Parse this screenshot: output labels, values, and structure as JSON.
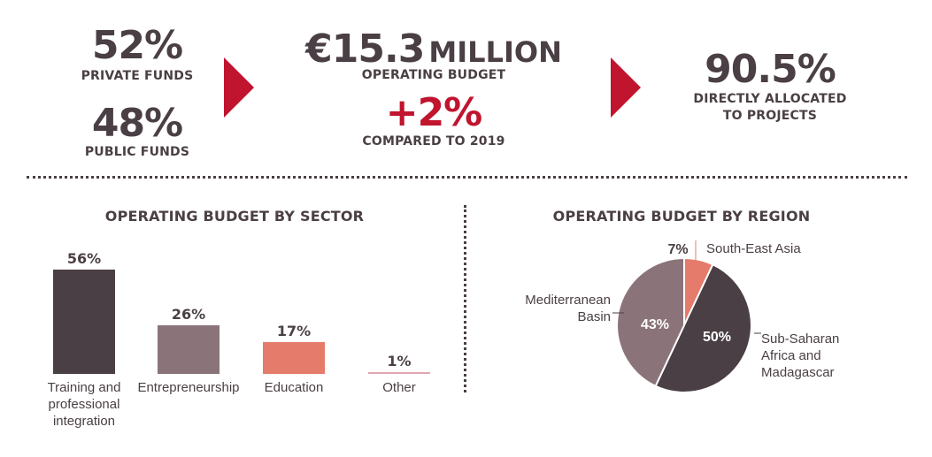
{
  "kpis": {
    "private_value": "52%",
    "private_label": "PRIVATE FUNDS",
    "public_value": "48%",
    "public_label": "PUBLIC FUNDS",
    "budget_value": "€15.3",
    "budget_unit": "MILLION",
    "budget_label": "OPERATING BUDGET",
    "change_value": "+2%",
    "change_label": "COMPARED TO 2019",
    "allocated_value": "90.5%",
    "allocated_label_line1": "DIRECTLY ALLOCATED",
    "allocated_label_line2": "TO PROJECTS"
  },
  "colors": {
    "accent": "#c0142f",
    "dark": "#4a3f44",
    "mauve": "#8a7479",
    "salmon": "#e57b6b",
    "pink": "#e0a7b1"
  },
  "chart_data": [
    {
      "type": "bar",
      "title": "OPERATING BUDGET BY SECTOR",
      "unit": "%",
      "categories": [
        "Training and professional integration",
        "Entrepreneurship",
        "Education",
        "Other"
      ],
      "category_lines": [
        [
          "Training and",
          "professional",
          "integration"
        ],
        [
          "Entrepreneurship"
        ],
        [
          "Education"
        ],
        [
          "Other"
        ]
      ],
      "values": [
        56,
        26,
        17,
        1
      ],
      "value_labels": [
        "56%",
        "26%",
        "17%",
        "1%"
      ],
      "colors": [
        "#4a3f44",
        "#8a7479",
        "#e57b6b",
        "#e0a7b1"
      ],
      "ylim": [
        0,
        56
      ]
    },
    {
      "type": "pie",
      "title": "OPERATING BUDGET BY REGION",
      "slices": [
        {
          "label": "South-East Asia",
          "label_lines": [
            "South-East Asia"
          ],
          "value": 7,
          "value_label": "7%",
          "color": "#e57b6b"
        },
        {
          "label": "Sub-Saharan Africa and Madagascar",
          "label_lines": [
            "Sub-Saharan",
            "Africa and",
            "Madagascar"
          ],
          "value": 50,
          "value_label": "50%",
          "color": "#4a3f44"
        },
        {
          "label": "Mediterranean Basin",
          "label_lines": [
            "Mediterranean",
            "Basin"
          ],
          "value": 43,
          "value_label": "43%",
          "color": "#8a7479"
        }
      ]
    }
  ]
}
